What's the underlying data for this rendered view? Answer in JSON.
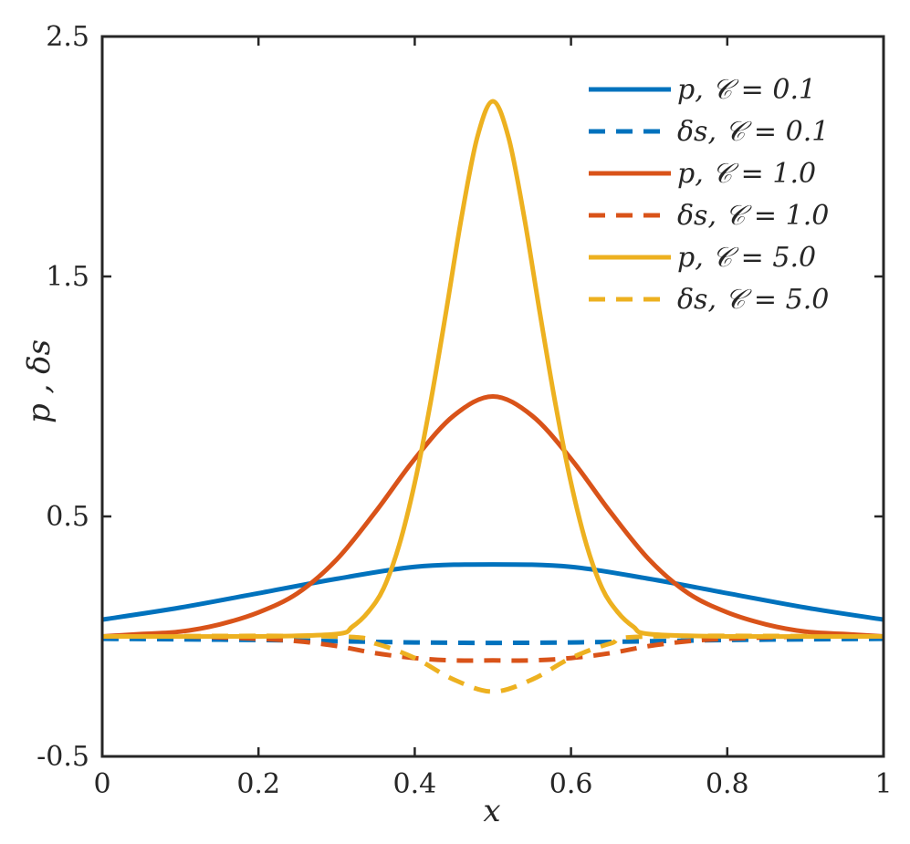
{
  "chart_data": {
    "type": "line",
    "xlabel": "x",
    "ylabel": "p , δs",
    "xlim": [
      0,
      1
    ],
    "ylim": [
      -0.5,
      2.5
    ],
    "xticks": [
      0,
      0.2,
      0.4,
      0.6,
      0.8,
      1
    ],
    "xtick_labels": [
      "0",
      "0.2",
      "0.4",
      "0.6",
      "0.8",
      "1"
    ],
    "yticks": [
      -0.5,
      0.5,
      1.5,
      2.5
    ],
    "ytick_labels": [
      "-0.5",
      "0.5",
      "1.5",
      "2.5"
    ],
    "grid": false,
    "legend_position": "top-right",
    "series": [
      {
        "name": "p, C = 0.1",
        "style": "solid",
        "color": "#0072BD",
        "x": [
          0,
          0.1,
          0.2,
          0.3,
          0.4,
          0.5,
          0.6,
          0.7,
          0.8,
          0.9,
          1
        ],
        "y": [
          0.07,
          0.12,
          0.18,
          0.24,
          0.29,
          0.3,
          0.29,
          0.24,
          0.18,
          0.12,
          0.07
        ]
      },
      {
        "name": "δs, C = 0.1",
        "style": "dashed",
        "color": "#0072BD",
        "x": [
          0,
          0.1,
          0.2,
          0.3,
          0.4,
          0.5,
          0.6,
          0.7,
          0.8,
          0.9,
          1
        ],
        "y": [
          -0.01,
          -0.012,
          -0.015,
          -0.02,
          -0.025,
          -0.027,
          -0.025,
          -0.02,
          -0.015,
          -0.012,
          -0.01
        ]
      },
      {
        "name": "p, C = 1.0",
        "style": "solid",
        "color": "#D95319",
        "x": [
          0,
          0.05,
          0.1,
          0.15,
          0.2,
          0.25,
          0.3,
          0.35,
          0.4,
          0.45,
          0.5,
          0.55,
          0.6,
          0.65,
          0.7,
          0.75,
          0.8,
          0.85,
          0.9,
          0.95,
          1
        ],
        "y": [
          0.0,
          0.01,
          0.02,
          0.05,
          0.1,
          0.18,
          0.32,
          0.52,
          0.74,
          0.92,
          1.0,
          0.92,
          0.74,
          0.52,
          0.32,
          0.18,
          0.1,
          0.05,
          0.02,
          0.01,
          0.0
        ]
      },
      {
        "name": "δs, C = 1.0",
        "style": "dashed",
        "color": "#D95319",
        "x": [
          0,
          0.1,
          0.2,
          0.25,
          0.3,
          0.35,
          0.4,
          0.45,
          0.5,
          0.55,
          0.6,
          0.65,
          0.7,
          0.75,
          0.8,
          0.9,
          1
        ],
        "y": [
          0.0,
          0.0,
          -0.01,
          -0.02,
          -0.04,
          -0.07,
          -0.09,
          -0.1,
          -0.1,
          -0.1,
          -0.09,
          -0.07,
          -0.04,
          -0.02,
          -0.01,
          0.0,
          0.0
        ]
      },
      {
        "name": "p, C = 5.0",
        "style": "solid",
        "color": "#EDB120",
        "x": [
          0,
          0.2,
          0.3,
          0.32,
          0.34,
          0.36,
          0.38,
          0.4,
          0.42,
          0.44,
          0.46,
          0.48,
          0.5,
          0.52,
          0.54,
          0.56,
          0.58,
          0.6,
          0.62,
          0.64,
          0.66,
          0.68,
          0.7,
          0.8,
          1
        ],
        "y": [
          0.0,
          0.0,
          0.01,
          0.04,
          0.1,
          0.2,
          0.38,
          0.64,
          0.97,
          1.35,
          1.75,
          2.08,
          2.23,
          2.08,
          1.75,
          1.35,
          0.97,
          0.64,
          0.38,
          0.2,
          0.1,
          0.04,
          0.01,
          0.0,
          0.0
        ]
      },
      {
        "name": "δs, C = 5.0",
        "style": "dashed",
        "color": "#EDB120",
        "x": [
          0,
          0.3,
          0.35,
          0.4,
          0.45,
          0.5,
          0.55,
          0.6,
          0.65,
          0.7,
          1
        ],
        "y": [
          0.0,
          0.0,
          -0.03,
          -0.09,
          -0.18,
          -0.23,
          -0.18,
          -0.09,
          -0.03,
          0.0,
          0.0
        ]
      }
    ]
  },
  "legend": {
    "items": [
      {
        "label": "p, 𝒞 = 0.1"
      },
      {
        "label": "δs, 𝒞 = 0.1"
      },
      {
        "label": "p, 𝒞 = 1.0"
      },
      {
        "label": "δs, 𝒞 = 1.0"
      },
      {
        "label": "p, 𝒞 = 5.0"
      },
      {
        "label": "δs, 𝒞 = 5.0"
      }
    ]
  }
}
